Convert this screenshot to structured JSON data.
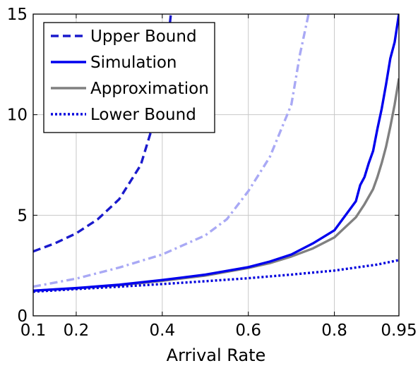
{
  "chart_data": {
    "type": "line",
    "title": "",
    "xlabel": "Arrival Rate",
    "ylabel": "",
    "xlim": [
      0.1,
      0.95
    ],
    "ylim": [
      0,
      15
    ],
    "grid": true,
    "legend_position": "top-left",
    "x_ticks": [
      0.1,
      0.2,
      0.4,
      0.6,
      0.8,
      0.95
    ],
    "x_tick_labels": [
      "0.1",
      "0.2",
      "0.4",
      "0.6",
      "0.8",
      "0.95"
    ],
    "y_ticks": [
      0,
      5,
      10,
      15
    ],
    "y_tick_labels": [
      "0",
      "5",
      "10",
      "15"
    ],
    "series": [
      {
        "name": "Upper Bound",
        "color": "#1a1acc",
        "style": "dashed",
        "in_legend": true,
        "x": [
          0.1,
          0.15,
          0.2,
          0.25,
          0.3,
          0.35,
          0.4,
          0.42
        ],
        "y": [
          3.2,
          3.6,
          4.1,
          4.8,
          5.8,
          7.5,
          11.0,
          15.0
        ]
      },
      {
        "name": "Simulation",
        "color": "#0000ee",
        "style": "solid",
        "in_legend": true,
        "x": [
          0.1,
          0.2,
          0.3,
          0.4,
          0.5,
          0.6,
          0.65,
          0.7,
          0.75,
          0.8,
          0.85,
          0.86,
          0.87,
          0.88,
          0.89,
          0.9,
          0.91,
          0.92,
          0.93,
          0.94,
          0.95
        ],
        "y": [
          1.25,
          1.38,
          1.55,
          1.78,
          2.05,
          2.42,
          2.7,
          3.05,
          3.6,
          4.25,
          5.7,
          6.5,
          6.9,
          7.6,
          8.2,
          9.3,
          10.3,
          11.5,
          12.8,
          13.6,
          15.0
        ]
      },
      {
        "name": "Approximation",
        "color": "#808080",
        "style": "solid",
        "in_legend": true,
        "x": [
          0.1,
          0.2,
          0.3,
          0.4,
          0.5,
          0.6,
          0.65,
          0.7,
          0.75,
          0.8,
          0.85,
          0.87,
          0.89,
          0.9,
          0.91,
          0.92,
          0.93,
          0.94,
          0.95
        ],
        "y": [
          1.25,
          1.37,
          1.52,
          1.74,
          2.0,
          2.38,
          2.62,
          2.95,
          3.35,
          3.9,
          4.9,
          5.55,
          6.3,
          6.9,
          7.6,
          8.4,
          9.4,
          10.5,
          11.8
        ]
      },
      {
        "name": "Lower Bound",
        "color": "#0000dd",
        "style": "dotted",
        "in_legend": true,
        "x": [
          0.1,
          0.2,
          0.3,
          0.4,
          0.5,
          0.6,
          0.7,
          0.8,
          0.9,
          0.95
        ],
        "y": [
          1.2,
          1.33,
          1.45,
          1.58,
          1.72,
          1.87,
          2.05,
          2.25,
          2.55,
          2.77
        ]
      },
      {
        "name": "",
        "color": "#a9a9f5",
        "style": "dashdot",
        "in_legend": false,
        "x": [
          0.1,
          0.2,
          0.3,
          0.4,
          0.5,
          0.55,
          0.6,
          0.65,
          0.7,
          0.72,
          0.74
        ],
        "y": [
          1.45,
          1.85,
          2.4,
          3.05,
          4.0,
          4.8,
          6.2,
          7.9,
          10.5,
          13.0,
          15.0
        ]
      }
    ]
  }
}
